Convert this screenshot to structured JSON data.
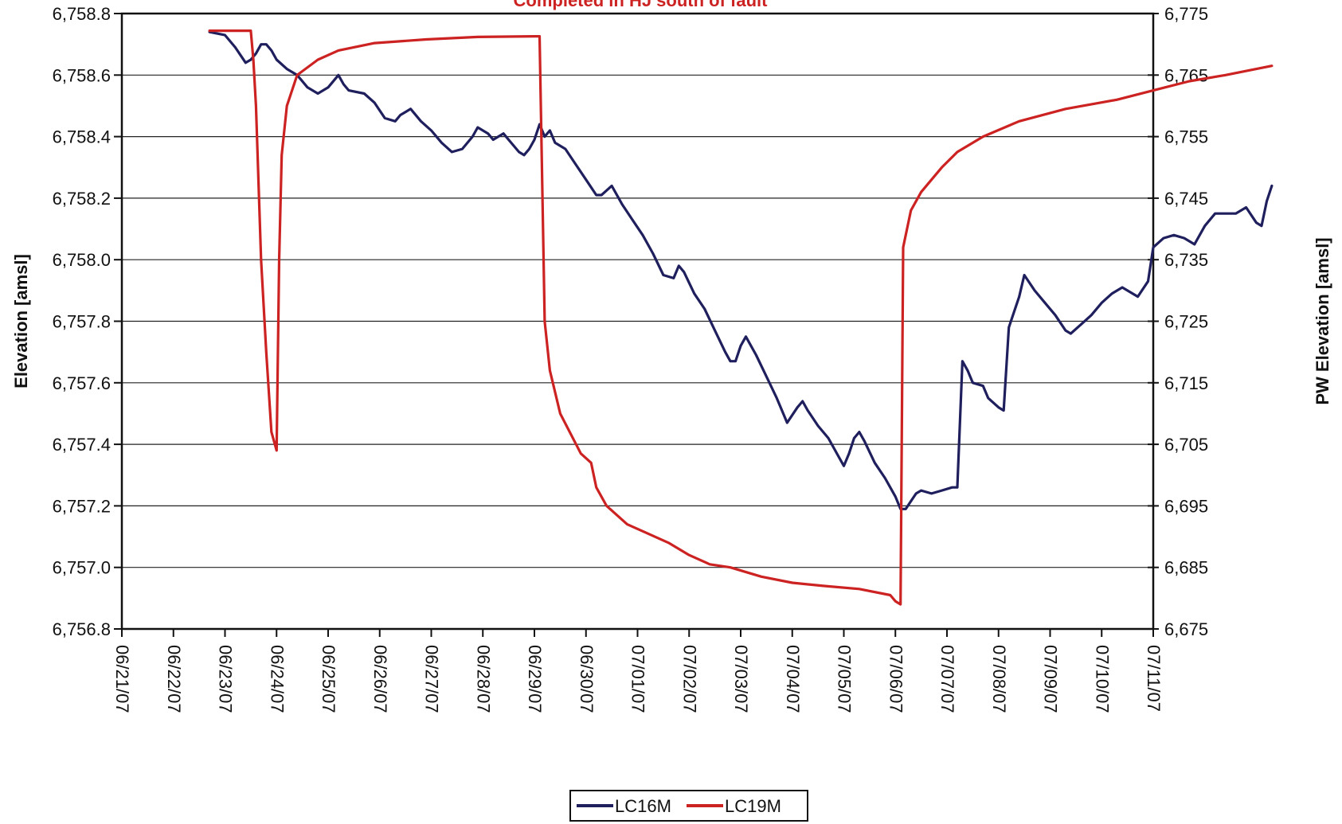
{
  "chart_data": {
    "type": "line",
    "title": "Completed in HJ south of fault",
    "title_color": "#cc2222",
    "ylabel": "Elevation [amsl]",
    "y2label": "PW Elevation [amsl]",
    "ylim": [
      6756.8,
      6758.8
    ],
    "y2lim": [
      6675,
      6775
    ],
    "y_ticks": [
      "6,756.8",
      "6,757.0",
      "6,757.2",
      "6,757.4",
      "6,757.6",
      "6,757.8",
      "6,758.0",
      "6,758.2",
      "6,758.4",
      "6,758.6",
      "6,758.8"
    ],
    "y2_ticks": [
      "6,675",
      "6,685",
      "6,695",
      "6,705",
      "6,715",
      "6,725",
      "6,735",
      "6,745",
      "6,755",
      "6,765",
      "6,775"
    ],
    "x_ticks": [
      "06/21/07",
      "06/22/07",
      "06/23/07",
      "06/24/07",
      "06/25/07",
      "06/26/07",
      "06/27/07",
      "06/28/07",
      "06/29/07",
      "06/30/07",
      "07/01/07",
      "07/02/07",
      "07/03/07",
      "07/04/07",
      "07/05/07",
      "07/06/07",
      "07/07/07",
      "07/08/07",
      "07/09/07",
      "07/10/07",
      "07/11/07"
    ],
    "grid": "horizontal",
    "legend_position": "bottom-center",
    "series": [
      {
        "name": "LC16M",
        "axis": "left",
        "color": "#1f1f5e",
        "points": [
          [
            "06/22/07 16:48",
            6758.74
          ],
          [
            "06/23/07 00:00",
            6758.73
          ],
          [
            "06/23/07 04:48",
            6758.69
          ],
          [
            "06/23/07 09:36",
            6758.64
          ],
          [
            "06/23/07 12:00",
            6758.65
          ],
          [
            "06/23/07 14:24",
            6758.67
          ],
          [
            "06/23/07 16:48",
            6758.7
          ],
          [
            "06/23/07 19:12",
            6758.7
          ],
          [
            "06/23/07 21:36",
            6758.68
          ],
          [
            "06/24/07 00:00",
            6758.65
          ],
          [
            "06/24/07 04:48",
            6758.62
          ],
          [
            "06/24/07 09:36",
            6758.6
          ],
          [
            "06/24/07 14:24",
            6758.56
          ],
          [
            "06/24/07 19:12",
            6758.54
          ],
          [
            "06/25/07 00:00",
            6758.56
          ],
          [
            "06/25/07 04:48",
            6758.6
          ],
          [
            "06/25/07 07:12",
            6758.57
          ],
          [
            "06/25/07 09:36",
            6758.55
          ],
          [
            "06/25/07 16:48",
            6758.54
          ],
          [
            "06/25/07 21:36",
            6758.51
          ],
          [
            "06/26/07 02:24",
            6758.46
          ],
          [
            "06/26/07 07:12",
            6758.45
          ],
          [
            "06/26/07 09:36",
            6758.47
          ],
          [
            "06/26/07 14:24",
            6758.49
          ],
          [
            "06/26/07 19:12",
            6758.45
          ],
          [
            "06/27/07 00:00",
            6758.42
          ],
          [
            "06/27/07 04:48",
            6758.38
          ],
          [
            "06/27/07 09:36",
            6758.35
          ],
          [
            "06/27/07 14:24",
            6758.36
          ],
          [
            "06/27/07 19:12",
            6758.4
          ],
          [
            "06/27/07 21:36",
            6758.43
          ],
          [
            "06/28/07 02:24",
            6758.41
          ],
          [
            "06/28/07 04:48",
            6758.39
          ],
          [
            "06/28/07 09:36",
            6758.41
          ],
          [
            "06/28/07 12:00",
            6758.39
          ],
          [
            "06/28/07 16:48",
            6758.35
          ],
          [
            "06/28/07 19:12",
            6758.34
          ],
          [
            "06/28/07 21:36",
            6758.36
          ],
          [
            "06/29/07 00:00",
            6758.39
          ],
          [
            "06/29/07 02:24",
            6758.44
          ],
          [
            "06/29/07 04:48",
            6758.4
          ],
          [
            "06/29/07 07:12",
            6758.42
          ],
          [
            "06/29/07 09:36",
            6758.38
          ],
          [
            "06/29/07 14:24",
            6758.36
          ],
          [
            "06/29/07 19:12",
            6758.31
          ],
          [
            "06/30/07 00:00",
            6758.26
          ],
          [
            "06/30/07 04:48",
            6758.21
          ],
          [
            "06/30/07 07:12",
            6758.21
          ],
          [
            "06/30/07 12:00",
            6758.24
          ],
          [
            "06/30/07 16:48",
            6758.18
          ],
          [
            "06/30/07 21:36",
            6758.13
          ],
          [
            "07/01/07 02:24",
            6758.08
          ],
          [
            "07/01/07 07:12",
            6758.02
          ],
          [
            "07/01/07 12:00",
            6757.95
          ],
          [
            "07/01/07 16:48",
            6757.94
          ],
          [
            "07/01/07 19:12",
            6757.98
          ],
          [
            "07/01/07 21:36",
            6757.96
          ],
          [
            "07/02/07 02:24",
            6757.89
          ],
          [
            "07/02/07 07:12",
            6757.84
          ],
          [
            "07/02/07 12:00",
            6757.77
          ],
          [
            "07/02/07 16:48",
            6757.7
          ],
          [
            "07/02/07 19:12",
            6757.67
          ],
          [
            "07/02/07 21:36",
            6757.67
          ],
          [
            "07/03/07 00:00",
            6757.72
          ],
          [
            "07/03/07 02:24",
            6757.75
          ],
          [
            "07/03/07 07:12",
            6757.69
          ],
          [
            "07/03/07 12:00",
            6757.62
          ],
          [
            "07/03/07 16:48",
            6757.55
          ],
          [
            "07/03/07 21:36",
            6757.47
          ],
          [
            "07/04/07 02:24",
            6757.52
          ],
          [
            "07/04/07 04:48",
            6757.54
          ],
          [
            "07/04/07 07:12",
            6757.51
          ],
          [
            "07/04/07 12:00",
            6757.46
          ],
          [
            "07/04/07 16:48",
            6757.42
          ],
          [
            "07/04/07 21:36",
            6757.36
          ],
          [
            "07/05/07 00:00",
            6757.33
          ],
          [
            "07/05/07 02:24",
            6757.37
          ],
          [
            "07/05/07 04:48",
            6757.42
          ],
          [
            "07/05/07 07:12",
            6757.44
          ],
          [
            "07/05/07 09:36",
            6757.41
          ],
          [
            "07/05/07 14:24",
            6757.34
          ],
          [
            "07/05/07 19:12",
            6757.29
          ],
          [
            "07/06/07 00:00",
            6757.23
          ],
          [
            "07/06/07 02:24",
            6757.19
          ],
          [
            "07/06/07 04:48",
            6757.19
          ],
          [
            "07/06/07 09:36",
            6757.24
          ],
          [
            "07/06/07 12:00",
            6757.25
          ],
          [
            "07/06/07 16:48",
            6757.24
          ],
          [
            "07/06/07 21:36",
            6757.25
          ],
          [
            "07/07/07 02:24",
            6757.26
          ],
          [
            "07/07/07 04:48",
            6757.26
          ],
          [
            "07/07/07 07:12",
            6757.67
          ],
          [
            "07/07/07 09:36",
            6757.64
          ],
          [
            "07/07/07 12:00",
            6757.6
          ],
          [
            "07/07/07 16:48",
            6757.59
          ],
          [
            "07/07/07 19:12",
            6757.55
          ],
          [
            "07/08/07 00:00",
            6757.52
          ],
          [
            "07/08/07 02:24",
            6757.51
          ],
          [
            "07/08/07 04:48",
            6757.78
          ],
          [
            "07/08/07 09:36",
            6757.88
          ],
          [
            "07/08/07 12:00",
            6757.95
          ],
          [
            "07/08/07 16:48",
            6757.9
          ],
          [
            "07/08/07 21:36",
            6757.86
          ],
          [
            "07/09/07 02:24",
            6757.82
          ],
          [
            "07/09/07 07:12",
            6757.77
          ],
          [
            "07/09/07 09:36",
            6757.76
          ],
          [
            "07/09/07 14:24",
            6757.79
          ],
          [
            "07/09/07 19:12",
            6757.82
          ],
          [
            "07/10/07 00:00",
            6757.86
          ],
          [
            "07/10/07 04:48",
            6757.89
          ],
          [
            "07/10/07 09:36",
            6757.91
          ],
          [
            "07/10/07 14:24",
            6757.89
          ],
          [
            "07/10/07 16:48",
            6757.88
          ],
          [
            "07/10/07 21:36",
            6757.93
          ],
          [
            "07/11/07 00:00",
            6758.04
          ],
          [
            "07/11/07 04:48",
            6758.07
          ],
          [
            "07/11/07 09:36",
            6758.08
          ],
          [
            "07/11/07 14:24",
            6758.07
          ],
          [
            "07/11/07 19:12",
            6758.05
          ],
          [
            "07/12/07 00:00",
            6758.11
          ],
          [
            "07/12/07 04:48",
            6758.15
          ],
          [
            "07/12/07 09:36",
            6758.15
          ],
          [
            "07/12/07 14:24",
            6758.15
          ],
          [
            "07/12/07 19:12",
            6758.17
          ],
          [
            "07/13/07 00:00",
            6758.12
          ],
          [
            "07/13/07 02:24",
            6758.11
          ],
          [
            "07/13/07 04:48",
            6758.19
          ],
          [
            "07/13/07 07:12",
            6758.24
          ]
        ]
      },
      {
        "name": "LC19M",
        "axis": "right",
        "color": "#cc2222",
        "points": [
          [
            "06/22/07 16:48",
            6772.2
          ],
          [
            "06/23/07 12:00",
            6772.2
          ],
          [
            "06/23/07 13:12",
            6767.5
          ],
          [
            "06/23/07 14:24",
            6760.0
          ],
          [
            "06/23/07 16:48",
            6735.0
          ],
          [
            "06/23/07 19:12",
            6720.0
          ],
          [
            "06/23/07 21:36",
            6707.0
          ],
          [
            "06/24/07 00:00",
            6704.0
          ],
          [
            "06/24/07 01:12",
            6735.0
          ],
          [
            "06/24/07 02:24",
            6752.0
          ],
          [
            "06/24/07 04:48",
            6760.0
          ],
          [
            "06/24/07 09:36",
            6765.0
          ],
          [
            "06/24/07 19:12",
            6767.5
          ],
          [
            "06/25/07 04:48",
            6769.0
          ],
          [
            "06/25/07 21:36",
            6770.2
          ],
          [
            "06/26/07 21:36",
            6770.8
          ],
          [
            "06/27/07 21:36",
            6771.2
          ],
          [
            "06/29/07 00:00",
            6771.3
          ],
          [
            "06/29/07 02:24",
            6771.3
          ],
          [
            "06/29/07 04:48",
            6725.0
          ],
          [
            "06/29/07 07:12",
            6717.0
          ],
          [
            "06/29/07 12:00",
            6710.0
          ],
          [
            "06/29/07 21:36",
            6703.5
          ],
          [
            "06/30/07 02:24",
            6702.0
          ],
          [
            "06/30/07 04:48",
            6698.0
          ],
          [
            "06/30/07 09:36",
            6695.0
          ],
          [
            "06/30/07 19:12",
            6692.0
          ],
          [
            "07/01/07 04:48",
            6690.5
          ],
          [
            "07/01/07 14:24",
            6689.0
          ],
          [
            "07/02/07 00:00",
            6687.0
          ],
          [
            "07/02/07 09:36",
            6685.5
          ],
          [
            "07/02/07 19:12",
            6685.0
          ],
          [
            "07/03/07 09:36",
            6683.5
          ],
          [
            "07/04/07 00:00",
            6682.5
          ],
          [
            "07/04/07 14:24",
            6682.0
          ],
          [
            "07/05/07 07:12",
            6681.5
          ],
          [
            "07/05/07 21:36",
            6680.5
          ],
          [
            "07/06/07 00:00",
            6679.5
          ],
          [
            "07/06/07 02:24",
            6679.0
          ],
          [
            "07/06/07 03:36",
            6737.0
          ],
          [
            "07/06/07 07:12",
            6743.0
          ],
          [
            "07/06/07 12:00",
            6746.0
          ],
          [
            "07/06/07 21:36",
            6750.0
          ],
          [
            "07/07/07 04:48",
            6752.5
          ],
          [
            "07/07/07 16:48",
            6755.0
          ],
          [
            "07/08/07 09:36",
            6757.5
          ],
          [
            "07/09/07 07:12",
            6759.5
          ],
          [
            "07/10/07 07:12",
            6761.0
          ],
          [
            "07/11/07 00:00",
            6762.5
          ],
          [
            "07/11/07 16:48",
            6764.0
          ],
          [
            "07/12/07 09:36",
            6765.0
          ],
          [
            "07/13/07 07:12",
            6766.5
          ]
        ]
      }
    ]
  }
}
